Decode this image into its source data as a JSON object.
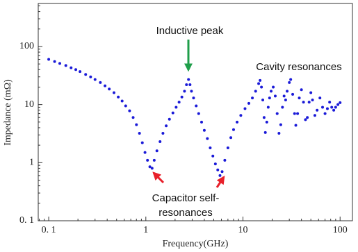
{
  "chart_data": {
    "type": "scatter",
    "x_label": "Frequency(GHz)",
    "y_label": "Impedance (mΩ)",
    "xscale": "log",
    "yscale": "log",
    "color": "#1a1ad8",
    "xlim": [
      0.078,
      134
    ],
    "ylim": [
      0.1,
      550
    ],
    "xticks": [
      {
        "value": 0.1,
        "label": "0. 1"
      },
      1,
      10,
      100
    ],
    "yticks": [
      {
        "value": 0.1,
        "label": "0. 1"
      },
      1,
      10,
      100
    ],
    "x": [
      0.1,
      0.115,
      0.13,
      0.15,
      0.17,
      0.19,
      0.21,
      0.24,
      0.27,
      0.3,
      0.34,
      0.38,
      0.42,
      0.47,
      0.52,
      0.57,
      0.62,
      0.68,
      0.74,
      0.8,
      0.86,
      0.92,
      0.98,
      1.04,
      1.1,
      1.16,
      1.22,
      1.3,
      1.4,
      1.5,
      1.62,
      1.75,
      1.9,
      2.05,
      2.2,
      2.35,
      2.5,
      2.62,
      2.75,
      2.85,
      2.95,
      3.1,
      3.3,
      3.5,
      3.75,
      4,
      4.3,
      4.6,
      4.9,
      5.2,
      5.5,
      5.8,
      6.1,
      6.5,
      7,
      7.5,
      8,
      8.7,
      9.5,
      10.5,
      11.5,
      12.5,
      13.5,
      14.5,
      15,
      15.5,
      16,
      16.5,
      17,
      17.6,
      18.2,
      18.8,
      19.5,
      20.5,
      21.5,
      22.5,
      23.5,
      24.5,
      25.5,
      26.5,
      27.5,
      28.5,
      30,
      31,
      32.5,
      34,
      35,
      36.5,
      38,
      40,
      42,
      44,
      46,
      48,
      50,
      52,
      55,
      58,
      62,
      66,
      70,
      74,
      78,
      82,
      86,
      90,
      95,
      100
    ],
    "values": [
      60,
      55,
      51,
      47,
      43,
      40,
      37,
      33,
      30,
      27,
      24,
      21,
      18.5,
      16,
      13.5,
      11.5,
      9.5,
      7.8,
      6,
      4.5,
      3.2,
      2.2,
      1.5,
      1.1,
      0.85,
      0.8,
      1.1,
      1.6,
      2.3,
      3.2,
      4.3,
      5.6,
      7.2,
      9,
      11,
      13.5,
      17,
      22,
      27,
      22,
      17,
      13,
      9.5,
      7,
      5,
      3.6,
      2.6,
      1.8,
      1.3,
      0.95,
      0.75,
      0.6,
      0.7,
      1.1,
      1.8,
      2.7,
      3.7,
      5,
      6.5,
      8.5,
      10.5,
      13,
      17,
      23,
      26,
      20,
      12,
      6,
      3.3,
      5,
      9,
      13,
      17,
      20,
      14,
      7,
      3.2,
      4.5,
      9,
      14,
      12,
      17,
      24,
      27,
      15,
      7,
      4.4,
      7,
      13,
      18,
      11,
      5.5,
      6,
      11,
      16,
      12,
      6.5,
      8,
      13,
      9,
      7,
      8.5,
      11,
      9,
      8,
      9,
      10,
      10.8
    ],
    "annotations": [
      {
        "text": [
          "Inductive peak"
        ],
        "color": "#1f9e4a"
      },
      {
        "text": [
          "Cavity resonances"
        ]
      },
      {
        "text": [
          "Capacitor self-",
          "resonances"
        ],
        "color": "#e8202a"
      }
    ]
  }
}
